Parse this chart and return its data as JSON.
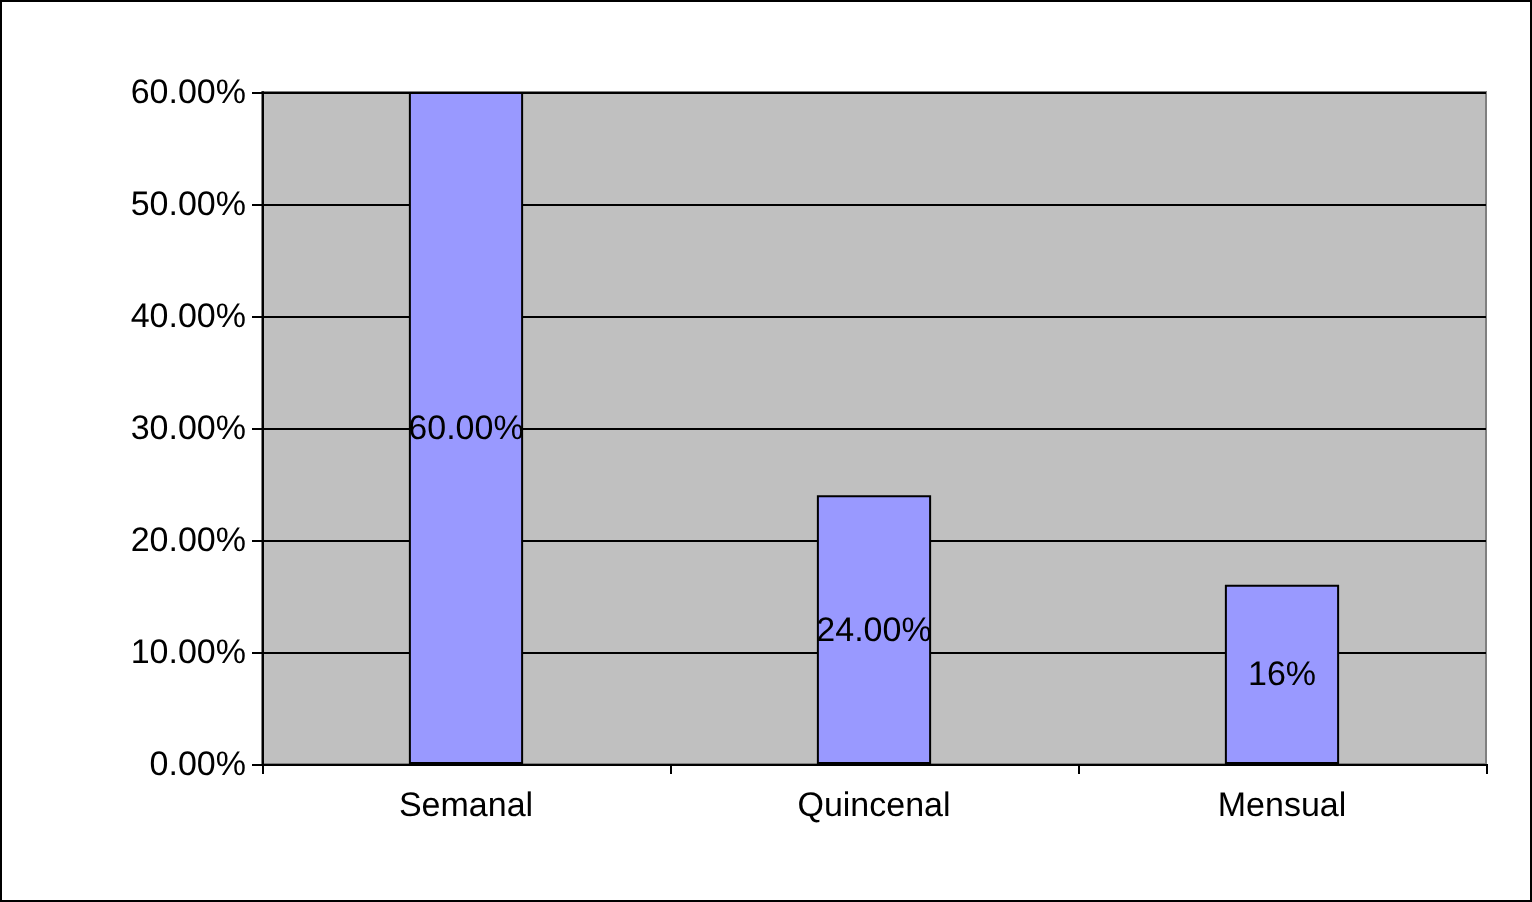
{
  "chart_data": {
    "type": "bar",
    "categories": [
      "Semanal",
      "Quincenal",
      "Mensual"
    ],
    "values": [
      60,
      24,
      16
    ],
    "value_labels": [
      "60.00%",
      "24.00%",
      "16%"
    ],
    "color": "#9999ff",
    "ylim": [
      0,
      60
    ],
    "yticks": [
      {
        "value": 0,
        "label": "0.00%"
      },
      {
        "value": 10,
        "label": "10.00%"
      },
      {
        "value": 20,
        "label": "20.00%"
      },
      {
        "value": 30,
        "label": "30.00%"
      },
      {
        "value": 40,
        "label": "40.00%"
      },
      {
        "value": 50,
        "label": "50.00%"
      },
      {
        "value": 60,
        "label": "60.00%"
      }
    ],
    "grid": "y"
  }
}
